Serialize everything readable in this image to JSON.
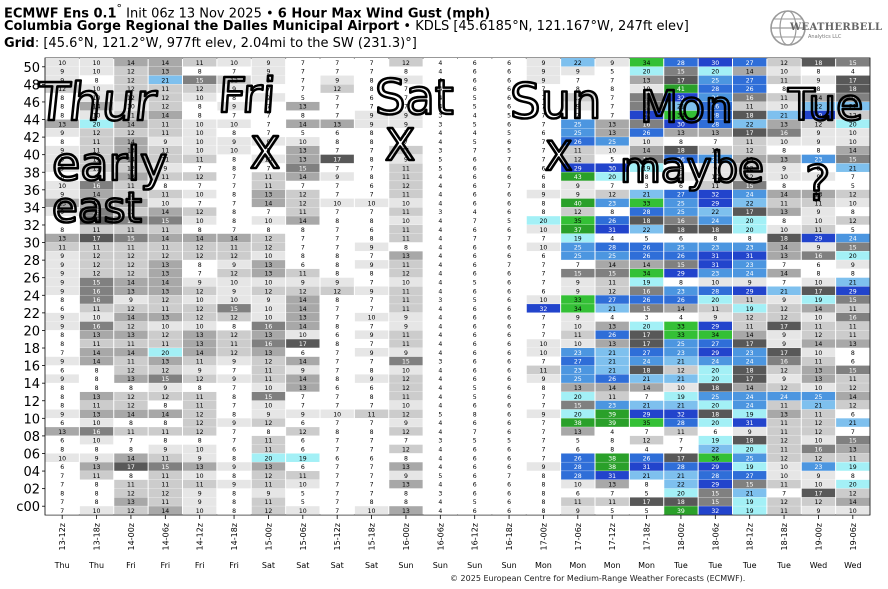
{
  "header": {
    "line1_bold_a": "ECMWF Ens 0.1",
    "line1_deg": "°",
    "line1_init": " Init 06z 13 Nov 2025 • ",
    "line1_bold_b": "6 Hour Max Wind Gust (mph)",
    "line2_bold": "Columbia Gorge Regional the Dalles Municipal Airport",
    "line2_rest": " • KDLS [45.6185°N, 121.167°W, 247ft elev]",
    "line3_bold": "Grid",
    "line3_rest": ": [45.6°N, 121.2°W, 977ft elev, 2.04mi to the SW (231.3)°]"
  },
  "logo": {
    "name": "WEATHERBELL",
    "sub": "Analytics LLC",
    "icon": "globe-icon"
  },
  "copyright": "© 2025 European Centre for Medium-Range Weather Forecasts (ECMWF).",
  "annotations": {
    "color": "#000000",
    "row1": [
      "Thur",
      "Fri",
      "Sat",
      "Sun",
      "Mon",
      "Tue"
    ],
    "row2": [
      "early",
      "X",
      "X",
      "X",
      "maybe",
      "?"
    ],
    "row3": [
      "east"
    ]
  },
  "chart_data": {
    "type": "heatmap",
    "title": "6 Hour Max Wind Gust (mph)",
    "xlabel": "",
    "ylabel": "",
    "y_labels": [
      "50",
      "48",
      "46",
      "44",
      "42",
      "40",
      "38",
      "36",
      "34",
      "32",
      "30",
      "28",
      "26",
      "24",
      "22",
      "20",
      "18",
      "16",
      "14",
      "12",
      "10",
      "08",
      "06",
      "04",
      "02",
      "c00"
    ],
    "x_labels": [
      "13-12z",
      "13-18z",
      "14-00z",
      "14-06z",
      "14-12z",
      "14-18z",
      "15-00z",
      "15-06z",
      "15-12z",
      "15-18z",
      "16-00z",
      "16-06z",
      "16-12z",
      "16-18z",
      "17-00z",
      "17-06z",
      "17-12z",
      "17-18z",
      "18-00z",
      "18-06z",
      "18-12z",
      "18-18z",
      "19-00z",
      "19-06z"
    ],
    "day_labels": [
      "Thu",
      "Thu",
      "Fri",
      "Fri",
      "Fri",
      "Fri",
      "Sat",
      "Sat",
      "Sat",
      "Sat",
      "Sun",
      "Sun",
      "Sun",
      "Sun",
      "Mon",
      "Mon",
      "Mon",
      "Mon",
      "Tue",
      "Tue",
      "Tue",
      "Tue",
      "Wed",
      "Wed"
    ],
    "color_scale": [
      {
        "max": 8,
        "color": "#ffffff"
      },
      {
        "max": 10,
        "color": "#e6e6e6"
      },
      {
        "max": 12,
        "color": "#cccccc"
      },
      {
        "max": 14,
        "color": "#a8a8a8"
      },
      {
        "max": 16,
        "color": "#808080"
      },
      {
        "max": 18,
        "color": "#585858"
      },
      {
        "max": 20,
        "color": "#a3f0f6"
      },
      {
        "max": 22,
        "color": "#7ec0ee"
      },
      {
        "max": 25,
        "color": "#4c96e0"
      },
      {
        "max": 28,
        "color": "#2f6ed8"
      },
      {
        "max": 32,
        "color": "#2244cc"
      },
      {
        "max": 36,
        "color": "#34c036"
      },
      {
        "max": 99,
        "color": "#2aa02a"
      }
    ],
    "values": [
      [
        10,
        10,
        14,
        14,
        11,
        10,
        9,
        7,
        7,
        7,
        12,
        4,
        6,
        6,
        9,
        22,
        9,
        34,
        28,
        30,
        27,
        12,
        18,
        15
      ],
      [
        9,
        10,
        12,
        13,
        8,
        7,
        9,
        7,
        7,
        7,
        8,
        4,
        6,
        6,
        9,
        9,
        5,
        20,
        15,
        20,
        14,
        10,
        8,
        4
      ],
      [
        9,
        8,
        12,
        21,
        15,
        12,
        9,
        7,
        9,
        8,
        9,
        4,
        6,
        6,
        9,
        7,
        7,
        13,
        17,
        25,
        27,
        11,
        9,
        17
      ],
      [
        12,
        10,
        12,
        11,
        12,
        9,
        7,
        7,
        12,
        8,
        7,
        4,
        6,
        6,
        7,
        8,
        8,
        10,
        41,
        28,
        26,
        8,
        8,
        18
      ],
      [
        8,
        10,
        12,
        12,
        10,
        8,
        9,
        5,
        7,
        6,
        7,
        4,
        5,
        6,
        7,
        12,
        7,
        15,
        32,
        24,
        16,
        11,
        14,
        16
      ],
      [
        8,
        14,
        10,
        12,
        8,
        9,
        7,
        13,
        7,
        7,
        7,
        4,
        5,
        6,
        7,
        9,
        7,
        16,
        21,
        26,
        11,
        10,
        22,
        21
      ],
      [
        8,
        10,
        11,
        14,
        8,
        7,
        7,
        8,
        7,
        9,
        9,
        3,
        4,
        5,
        7,
        7,
        7,
        29,
        34,
        28,
        18,
        21,
        29,
        12
      ],
      [
        13,
        20,
        14,
        11,
        10,
        10,
        7,
        14,
        13,
        9,
        9,
        3,
        5,
        6,
        7,
        25,
        13,
        16,
        30,
        28,
        22,
        13,
        12,
        20
      ],
      [
        9,
        12,
        12,
        11,
        10,
        8,
        7,
        5,
        6,
        8,
        7,
        4,
        4,
        5,
        6,
        25,
        13,
        26,
        13,
        13,
        17,
        16,
        9,
        10
      ],
      [
        8,
        11,
        14,
        9,
        10,
        9,
        9,
        10,
        8,
        8,
        7,
        4,
        5,
        6,
        7,
        26,
        25,
        10,
        8,
        7,
        11,
        10,
        9,
        10
      ],
      [
        9,
        11,
        13,
        11,
        10,
        10,
        8,
        13,
        7,
        7,
        11,
        3,
        7,
        5,
        7,
        11,
        10,
        14,
        18,
        11,
        12,
        8,
        8,
        14
      ],
      [
        9,
        11,
        14,
        11,
        11,
        8,
        10,
        13,
        17,
        8,
        9,
        5,
        6,
        7,
        7,
        12,
        5,
        15,
        26,
        25,
        13,
        13,
        23,
        15
      ],
      [
        9,
        11,
        12,
        9,
        7,
        8,
        7,
        15,
        7,
        7,
        11,
        5,
        6,
        6,
        6,
        29,
        30,
        19,
        8,
        9,
        12,
        9,
        8,
        21
      ],
      [
        8,
        9,
        13,
        11,
        12,
        7,
        11,
        14,
        9,
        8,
        11,
        4,
        6,
        6,
        6,
        43,
        20,
        8,
        9,
        10,
        12,
        10,
        9,
        7
      ],
      [
        10,
        16,
        11,
        8,
        7,
        7,
        11,
        7,
        7,
        6,
        12,
        4,
        6,
        7,
        8,
        9,
        7,
        3,
        6,
        11,
        15,
        8,
        8,
        5
      ],
      [
        9,
        14,
        12,
        11,
        10,
        8,
        13,
        12,
        7,
        7,
        11,
        4,
        6,
        6,
        9,
        9,
        12,
        21,
        27,
        32,
        24,
        14,
        13,
        12
      ],
      [
        13,
        14,
        13,
        10,
        7,
        7,
        14,
        12,
        10,
        10,
        10,
        4,
        6,
        6,
        8,
        40,
        23,
        33,
        25,
        29,
        22,
        11,
        11,
        10
      ],
      [
        9,
        15,
        12,
        14,
        12,
        8,
        7,
        11,
        7,
        7,
        11,
        3,
        4,
        6,
        8,
        12,
        8,
        28,
        25,
        22,
        17,
        13,
        9,
        8
      ],
      [
        8,
        17,
        15,
        15,
        10,
        8,
        10,
        14,
        8,
        8,
        10,
        4,
        7,
        5,
        20,
        35,
        26,
        18,
        16,
        24,
        20,
        8,
        10,
        12
      ],
      [
        8,
        11,
        11,
        11,
        8,
        7,
        8,
        8,
        7,
        6,
        11,
        4,
        6,
        6,
        10,
        37,
        31,
        22,
        18,
        18,
        20,
        10,
        11,
        5
      ],
      [
        13,
        17,
        15,
        14,
        14,
        14,
        12,
        7,
        7,
        8,
        11,
        4,
        7,
        7,
        7,
        19,
        4,
        5,
        6,
        8,
        8,
        18,
        29,
        24
      ],
      [
        11,
        11,
        11,
        11,
        12,
        11,
        12,
        7,
        7,
        9,
        8,
        4,
        6,
        6,
        10,
        25,
        28,
        26,
        25,
        23,
        23,
        14,
        9,
        15
      ],
      [
        9,
        12,
        12,
        12,
        12,
        12,
        10,
        8,
        8,
        7,
        13,
        4,
        6,
        6,
        6,
        25,
        25,
        26,
        26,
        31,
        31,
        13,
        16,
        20
      ],
      [
        9,
        12,
        12,
        13,
        8,
        9,
        13,
        6,
        8,
        9,
        11,
        4,
        6,
        7,
        7,
        7,
        14,
        14,
        15,
        31,
        23,
        7,
        6,
        9
      ],
      [
        9,
        12,
        12,
        13,
        7,
        12,
        13,
        11,
        8,
        8,
        12,
        4,
        6,
        6,
        7,
        15,
        15,
        34,
        29,
        23,
        24,
        14,
        8,
        8
      ],
      [
        9,
        15,
        14,
        14,
        9,
        10,
        10,
        9,
        9,
        7,
        10,
        4,
        5,
        6,
        7,
        9,
        11,
        19,
        8,
        10,
        9,
        7,
        10,
        21
      ],
      [
        9,
        16,
        13,
        13,
        12,
        9,
        12,
        12,
        12,
        9,
        11,
        4,
        6,
        6,
        6,
        9,
        12,
        16,
        23,
        28,
        29,
        21,
        17,
        29
      ],
      [
        8,
        16,
        9,
        12,
        10,
        10,
        9,
        14,
        8,
        7,
        11,
        3,
        5,
        6,
        10,
        33,
        27,
        26,
        26,
        20,
        11,
        9,
        19,
        15
      ],
      [
        6,
        11,
        12,
        11,
        12,
        15,
        10,
        14,
        7,
        7,
        11,
        4,
        6,
        6,
        32,
        34,
        21,
        15,
        14,
        11,
        19,
        12,
        14,
        11
      ],
      [
        9,
        10,
        14,
        13,
        12,
        12,
        10,
        13,
        7,
        10,
        9,
        4,
        6,
        6,
        7,
        9,
        4,
        3,
        4,
        9,
        12,
        12,
        10,
        16
      ],
      [
        9,
        16,
        12,
        10,
        10,
        8,
        16,
        14,
        8,
        7,
        9,
        4,
        6,
        6,
        7,
        10,
        13,
        20,
        33,
        29,
        11,
        17,
        11,
        11
      ],
      [
        8,
        13,
        13,
        12,
        13,
        12,
        13,
        10,
        6,
        9,
        11,
        4,
        6,
        6,
        7,
        11,
        26,
        17,
        33,
        34,
        14,
        9,
        12,
        11
      ],
      [
        8,
        11,
        11,
        11,
        13,
        11,
        16,
        17,
        8,
        7,
        11,
        4,
        6,
        6,
        10,
        10,
        13,
        17,
        25,
        27,
        17,
        9,
        14,
        13
      ],
      [
        7,
        14,
        14,
        20,
        14,
        12,
        13,
        6,
        7,
        9,
        9,
        4,
        6,
        6,
        10,
        23,
        21,
        27,
        23,
        29,
        23,
        17,
        10,
        8
      ],
      [
        9,
        14,
        11,
        13,
        11,
        9,
        12,
        14,
        7,
        7,
        15,
        3,
        6,
        6,
        7,
        27,
        21,
        24,
        21,
        24,
        24,
        16,
        11,
        6
      ],
      [
        6,
        8,
        12,
        12,
        9,
        7,
        11,
        9,
        7,
        8,
        10,
        4,
        6,
        6,
        11,
        23,
        21,
        18,
        12,
        20,
        18,
        12,
        13,
        15
      ],
      [
        9,
        8,
        13,
        15,
        12,
        9,
        11,
        14,
        8,
        9,
        12,
        4,
        6,
        6,
        9,
        25,
        26,
        21,
        21,
        20,
        17,
        9,
        13,
        11
      ],
      [
        8,
        8,
        8,
        9,
        8,
        7,
        10,
        13,
        6,
        6,
        12,
        4,
        5,
        6,
        8,
        13,
        14,
        14,
        10,
        18,
        14,
        12,
        10,
        12
      ],
      [
        8,
        13,
        12,
        12,
        11,
        8,
        15,
        7,
        7,
        8,
        11,
        4,
        5,
        6,
        7,
        20,
        11,
        7,
        19,
        25,
        24,
        24,
        25,
        14
      ],
      [
        8,
        11,
        12,
        8,
        11,
        7,
        10,
        7,
        7,
        7,
        10,
        4,
        6,
        6,
        7,
        15,
        23,
        21,
        21,
        20,
        24,
        11,
        21,
        12
      ],
      [
        9,
        13,
        14,
        14,
        12,
        8,
        9,
        9,
        10,
        11,
        12,
        5,
        8,
        6,
        9,
        20,
        39,
        29,
        32,
        18,
        19,
        13,
        11,
        6
      ],
      [
        6,
        10,
        8,
        8,
        12,
        9,
        12,
        6,
        7,
        7,
        9,
        4,
        6,
        6,
        7,
        38,
        39,
        35,
        28,
        20,
        31,
        11,
        12,
        21
      ],
      [
        13,
        16,
        11,
        11,
        12,
        7,
        8,
        12,
        8,
        8,
        12,
        4,
        7,
        6,
        7,
        13,
        4,
        7,
        11,
        6,
        9,
        11,
        12,
        7
      ],
      [
        6,
        10,
        7,
        8,
        8,
        7,
        11,
        6,
        7,
        7,
        7,
        3,
        5,
        5,
        7,
        5,
        8,
        12,
        7,
        19,
        18,
        12,
        10,
        15
      ],
      [
        8,
        8,
        8,
        9,
        10,
        6,
        11,
        6,
        7,
        7,
        12,
        4,
        6,
        6,
        7,
        6,
        8,
        4,
        7,
        22,
        20,
        11,
        16,
        13
      ],
      [
        10,
        9,
        14,
        11,
        9,
        8,
        20,
        19,
        6,
        6,
        8,
        4,
        6,
        6,
        7,
        26,
        38,
        26,
        17,
        36,
        25,
        12,
        12,
        11
      ],
      [
        6,
        13,
        17,
        15,
        13,
        9,
        13,
        6,
        7,
        7,
        13,
        4,
        6,
        6,
        9,
        28,
        38,
        31,
        28,
        29,
        19,
        10,
        23,
        19
      ],
      [
        7,
        11,
        8,
        11,
        10,
        8,
        12,
        11,
        7,
        7,
        9,
        5,
        6,
        7,
        8,
        28,
        31,
        21,
        21,
        28,
        27,
        10,
        9,
        8
      ],
      [
        7,
        8,
        11,
        11,
        11,
        9,
        11,
        10,
        7,
        7,
        13,
        4,
        6,
        6,
        8,
        10,
        13,
        8,
        22,
        29,
        15,
        11,
        10,
        20
      ],
      [
        8,
        8,
        12,
        12,
        9,
        8,
        9,
        5,
        7,
        7,
        8,
        3,
        6,
        6,
        8,
        6,
        7,
        5,
        20,
        15,
        21,
        7,
        17,
        12
      ],
      [
        7,
        8,
        13,
        11,
        9,
        8,
        11,
        5,
        7,
        8,
        8,
        4,
        5,
        6,
        8,
        11,
        11,
        17,
        18,
        15,
        19,
        12,
        12,
        14
      ],
      [
        7,
        10,
        12,
        14,
        10,
        8,
        12,
        10,
        7,
        10,
        13,
        4,
        6,
        6,
        8,
        9,
        5,
        5,
        39,
        32,
        19,
        11,
        9,
        10
      ]
    ]
  }
}
